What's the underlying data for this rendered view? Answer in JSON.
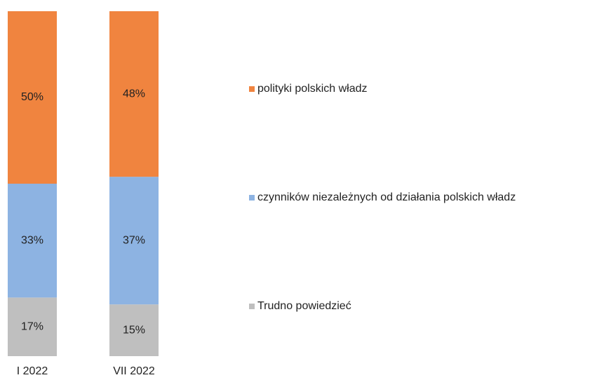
{
  "chart_data": {
    "type": "stacked_bar",
    "categories": [
      "I 2022",
      "VII 2022"
    ],
    "series": [
      {
        "name": "polityki polskich władz",
        "color": "#f0843f",
        "values": [
          50,
          48
        ],
        "value_labels": [
          "50%",
          "48%"
        ]
      },
      {
        "name": "czynników niezależnych od działania polskich władz",
        "color": "#8db3e2",
        "values": [
          33,
          37
        ],
        "value_labels": [
          "33%",
          "37%"
        ]
      },
      {
        "name": "Trudno powiedzieć",
        "color": "#bfbfbf",
        "values": [
          17,
          15
        ],
        "value_labels": [
          "17%",
          "15%"
        ]
      }
    ]
  }
}
